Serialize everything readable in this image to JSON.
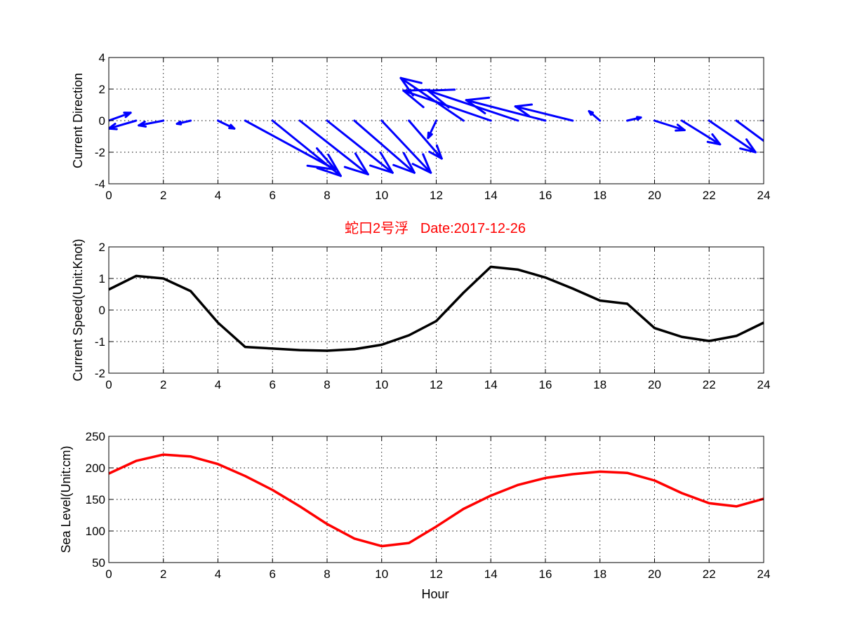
{
  "title": "蛇口2号浮   Date:2017-12-26",
  "colors": {
    "quiver": "#0000ff",
    "speed": "#000000",
    "level": "#ff0000",
    "title": "#ff0000"
  },
  "chart_data": [
    {
      "type": "quiver",
      "ylabel": "Current Direction",
      "xlim": [
        0,
        24
      ],
      "ylim": [
        -4,
        4
      ],
      "xticks": [
        0,
        2,
        4,
        6,
        8,
        10,
        12,
        14,
        16,
        18,
        20,
        22,
        24
      ],
      "yticks": [
        -4,
        -2,
        0,
        2,
        4
      ],
      "grid": true,
      "x": [
        0,
        1,
        2,
        3,
        4,
        5,
        6,
        7,
        8,
        9,
        10,
        11,
        12,
        13,
        14,
        15,
        16,
        17,
        18,
        19,
        20,
        21,
        22,
        23,
        24
      ],
      "u": [
        0.8,
        -1.0,
        -0.9,
        -0.5,
        0.6,
        3.3,
        2.5,
        2.5,
        2.4,
        2.2,
        1.8,
        1.2,
        -0.3,
        -2.3,
        -3.2,
        -3.3,
        -2.9,
        -2.1,
        -0.4,
        0.5,
        1.1,
        1.4,
        1.7,
        1.8,
        1.0
      ],
      "v": [
        0.5,
        -0.5,
        -0.3,
        -0.2,
        -0.5,
        -3.1,
        -3.5,
        -3.4,
        -3.3,
        -3.3,
        -3.3,
        -2.4,
        -1.1,
        2.7,
        1.9,
        1.9,
        1.3,
        0.9,
        0.6,
        0.2,
        -0.6,
        -1.5,
        -2.0,
        -2.3,
        -0.7
      ]
    },
    {
      "type": "line",
      "ylabel": "Current Speed(Unit:Knot)",
      "xlim": [
        0,
        24
      ],
      "ylim": [
        -2,
        2
      ],
      "xticks": [
        0,
        2,
        4,
        6,
        8,
        10,
        12,
        14,
        16,
        18,
        20,
        22,
        24
      ],
      "yticks": [
        -2,
        -1,
        0,
        1,
        2
      ],
      "grid": true,
      "x": [
        0,
        1,
        2,
        3,
        4,
        5,
        6,
        7,
        8,
        9,
        10,
        11,
        12,
        13,
        14,
        15,
        16,
        17,
        18,
        19,
        20,
        21,
        22,
        23,
        24
      ],
      "y": [
        0.65,
        1.08,
        1.0,
        0.6,
        -0.4,
        -1.17,
        -1.22,
        -1.27,
        -1.29,
        -1.24,
        -1.1,
        -0.8,
        -0.35,
        0.55,
        1.37,
        1.28,
        1.03,
        0.68,
        0.3,
        0.2,
        -0.57,
        -0.85,
        -0.98,
        -0.82,
        -0.4
      ]
    },
    {
      "type": "line",
      "ylabel": "Sea Level(Unit:cm)",
      "xlabel": "Hour",
      "xlim": [
        0,
        24
      ],
      "ylim": [
        50,
        250
      ],
      "xticks": [
        0,
        2,
        4,
        6,
        8,
        10,
        12,
        14,
        16,
        18,
        20,
        22,
        24
      ],
      "yticks": [
        50,
        100,
        150,
        200,
        250
      ],
      "grid": true,
      "x": [
        0,
        1,
        2,
        3,
        4,
        5,
        6,
        7,
        8,
        9,
        10,
        11,
        12,
        13,
        14,
        15,
        16,
        17,
        18,
        19,
        20,
        21,
        22,
        23,
        24
      ],
      "y": [
        191,
        211,
        221,
        218,
        206,
        187,
        165,
        139,
        111,
        88,
        76,
        81,
        107,
        135,
        156,
        173,
        184,
        190,
        194,
        192,
        180,
        160,
        144,
        139,
        151
      ]
    }
  ]
}
